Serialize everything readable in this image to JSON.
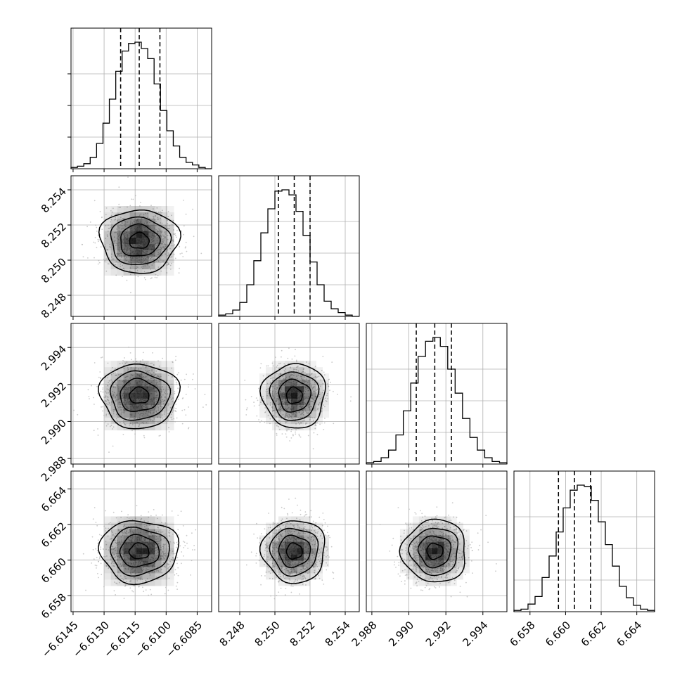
{
  "chart_data": {
    "type": "corner",
    "parameters": [
      {
        "name": "",
        "ticks": [
          -6.6145,
          -6.613,
          -6.6115,
          -6.61,
          -6.6085
        ],
        "tick_labels": [
          "−6.6145",
          "−6.6130",
          "−6.6115",
          "−6.6100",
          "−6.6085"
        ],
        "range": [
          -6.6146,
          -6.6078
        ],
        "quantiles": [
          -6.6122,
          -6.6113,
          -6.6103
        ],
        "hist_counts": [
          1,
          2,
          4,
          9,
          20,
          36,
          55,
          77,
          93,
          99,
          100,
          95,
          87,
          67,
          46,
          30,
          18,
          9,
          5,
          3,
          1,
          0
        ]
      },
      {
        "name": "",
        "ticks": [
          8.248,
          8.25,
          8.252,
          8.254
        ],
        "tick_labels": [
          "8.248",
          "8.250",
          "8.252",
          "8.254"
        ],
        "range": [
          8.2468,
          8.2548
        ],
        "quantiles": [
          8.2502,
          8.2511,
          8.252
        ],
        "hist_counts": [
          1,
          2,
          5,
          11,
          25,
          44,
          66,
          85,
          99,
          100,
          96,
          83,
          64,
          43,
          25,
          12,
          6,
          3,
          1,
          0
        ]
      },
      {
        "name": "",
        "ticks": [
          2.988,
          2.99,
          2.992,
          2.994
        ],
        "tick_labels": [
          "2.988",
          "2.990",
          "2.992",
          "2.994"
        ],
        "range": [
          2.9877,
          2.9953
        ],
        "quantiles": [
          2.9904,
          2.9914,
          2.9923
        ],
        "hist_counts": [
          1,
          2,
          5,
          11,
          23,
          42,
          64,
          85,
          97,
          100,
          93,
          75,
          56,
          36,
          21,
          11,
          5,
          2,
          1
        ]
      },
      {
        "name": "",
        "ticks": [
          6.658,
          6.66,
          6.662,
          6.664
        ],
        "tick_labels": [
          "6.658",
          "6.660",
          "6.662",
          "6.664"
        ],
        "range": [
          6.6571,
          6.665
        ],
        "quantiles": [
          6.6596,
          6.6605,
          6.6614
        ],
        "hist_counts": [
          1,
          2,
          6,
          12,
          27,
          44,
          63,
          82,
          96,
          100,
          99,
          88,
          71,
          53,
          36,
          20,
          11,
          5,
          2,
          1
        ]
      }
    ],
    "density_centers": [
      -6.6113,
      8.2511,
      2.9914,
      6.6605
    ],
    "density_spreads": [
      0.00095,
      0.0009,
      0.00087,
      0.00088
    ],
    "contour_levels": 4,
    "grid": true,
    "colors": {
      "line": "#000000",
      "grid": "#b0b0b0",
      "scatter": "#b3b3b3",
      "density": "#000000"
    }
  }
}
